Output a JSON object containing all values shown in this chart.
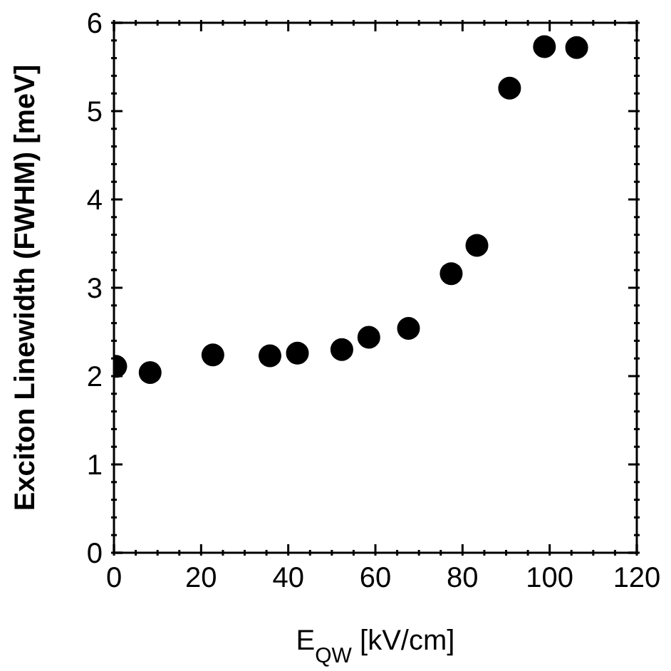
{
  "chart_data": {
    "type": "scatter",
    "xlabel": "E$_{QW}$ [kV/cm]",
    "ylabel": "Exciton Linewidth (FWHM) [meV]",
    "x": [
      0.4,
      8.3,
      22.7,
      35.8,
      42.1,
      52.3,
      58.5,
      67.6,
      77.4,
      83.3,
      90.8,
      98.8,
      106.2
    ],
    "series": [
      {
        "color": "#000000",
        "values": [
          2.11,
          2.04,
          2.24,
          2.23,
          2.26,
          2.3,
          2.44,
          2.54,
          3.16,
          3.48,
          5.26,
          5.73,
          5.72
        ]
      }
    ],
    "xlim": [
      0,
      120
    ],
    "xticks": [
      0,
      {
        "value": 5,
        "label": null
      },
      {
        "value": 10,
        "label": null
      },
      {
        "value": 15,
        "label": null
      },
      20,
      {
        "value": 25,
        "label": null
      },
      {
        "value": 30,
        "label": null
      },
      {
        "value": 35,
        "label": null
      },
      40,
      {
        "value": 45,
        "label": null
      },
      {
        "value": 50,
        "label": null
      },
      {
        "value": 55,
        "label": null
      },
      60,
      {
        "value": 65,
        "label": null
      },
      {
        "value": 70,
        "label": null
      },
      {
        "value": 75,
        "label": null
      },
      80,
      {
        "value": 85,
        "label": null
      },
      {
        "value": 90,
        "label": null
      },
      {
        "value": 95,
        "label": null
      },
      100,
      {
        "value": 105,
        "label": null
      },
      {
        "value": 110,
        "label": null
      },
      {
        "value": 115,
        "label": null
      },
      120
    ],
    "ylim": [
      0,
      6
    ],
    "yticks": [
      0,
      {
        "value": 0.2,
        "label": null
      },
      {
        "value": 0.4,
        "label": null
      },
      {
        "value": 0.6,
        "label": null
      },
      {
        "value": 0.8,
        "label": null
      },
      1,
      {
        "value": 1.2,
        "label": null
      },
      {
        "value": 1.4,
        "label": null
      },
      {
        "value": 1.6,
        "label": null
      },
      {
        "value": 1.8,
        "label": null
      },
      2,
      {
        "value": 2.2,
        "label": null
      },
      {
        "value": 2.4,
        "label": null
      },
      {
        "value": 2.6,
        "label": null
      },
      {
        "value": 2.8,
        "label": null
      },
      3,
      {
        "value": 3.2,
        "label": null
      },
      {
        "value": 3.4,
        "label": null
      },
      {
        "value": 3.6,
        "label": null
      },
      {
        "value": 3.8,
        "label": null
      },
      4,
      {
        "value": 4.2,
        "label": null
      },
      {
        "value": 4.4,
        "label": null
      },
      {
        "value": 4.6,
        "label": null
      },
      {
        "value": 4.8,
        "label": null
      },
      5,
      {
        "value": 5.2,
        "label": null
      },
      {
        "value": 5.4,
        "label": null
      },
      {
        "value": 5.6,
        "label": null
      },
      {
        "value": 5.8,
        "label": null
      },
      6
    ],
    "marker": "circle",
    "grid": false
  }
}
